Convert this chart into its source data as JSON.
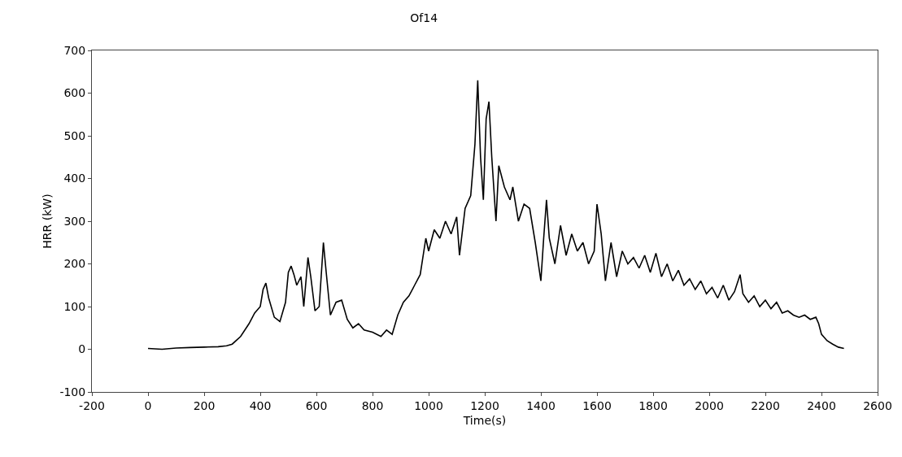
{
  "chart_data": {
    "type": "line",
    "title": "Of14",
    "xlabel": "Time(s)",
    "ylabel": "HRR (kW)",
    "xlim": [
      -200,
      2600
    ],
    "xticks": [
      -200,
      0,
      200,
      400,
      600,
      800,
      1000,
      1200,
      1400,
      1600,
      1800,
      2000,
      2200,
      2400,
      2600
    ],
    "ylim": [
      -100,
      700
    ],
    "yticks": [
      -100,
      0,
      100,
      200,
      300,
      400,
      500,
      600,
      700
    ],
    "marker": "none",
    "line_style": "solid",
    "series": [
      {
        "color": "#000000",
        "x": [
          0,
          50,
          100,
          150,
          200,
          250,
          280,
          300,
          330,
          360,
          380,
          400,
          410,
          420,
          430,
          450,
          470,
          490,
          500,
          510,
          520,
          530,
          545,
          555,
          570,
          580,
          595,
          610,
          625,
          635,
          650,
          670,
          690,
          710,
          730,
          750,
          770,
          800,
          830,
          850,
          870,
          890,
          910,
          930,
          950,
          970,
          990,
          1000,
          1020,
          1040,
          1060,
          1080,
          1100,
          1110,
          1130,
          1150,
          1165,
          1175,
          1185,
          1195,
          1205,
          1215,
          1225,
          1240,
          1250,
          1270,
          1290,
          1300,
          1320,
          1340,
          1360,
          1380,
          1400,
          1410,
          1420,
          1430,
          1450,
          1470,
          1490,
          1510,
          1530,
          1550,
          1570,
          1590,
          1600,
          1615,
          1630,
          1650,
          1670,
          1690,
          1710,
          1730,
          1750,
          1770,
          1790,
          1810,
          1830,
          1850,
          1870,
          1890,
          1910,
          1930,
          1950,
          1970,
          1990,
          2010,
          2030,
          2050,
          2070,
          2090,
          2110,
          2120,
          2140,
          2160,
          2180,
          2200,
          2220,
          2240,
          2260,
          2280,
          2300,
          2320,
          2340,
          2360,
          2380,
          2390,
          2400,
          2420,
          2440,
          2460,
          2480
        ],
        "values": [
          2,
          0,
          3,
          4,
          5,
          6,
          8,
          12,
          30,
          60,
          85,
          100,
          140,
          155,
          120,
          75,
          65,
          110,
          180,
          195,
          175,
          150,
          170,
          100,
          215,
          170,
          90,
          100,
          250,
          180,
          80,
          110,
          115,
          70,
          50,
          60,
          45,
          40,
          30,
          45,
          35,
          80,
          110,
          125,
          150,
          175,
          260,
          230,
          280,
          260,
          300,
          270,
          310,
          220,
          330,
          360,
          480,
          630,
          450,
          350,
          540,
          580,
          450,
          300,
          430,
          380,
          350,
          380,
          300,
          340,
          330,
          250,
          160,
          260,
          350,
          260,
          200,
          290,
          220,
          270,
          230,
          250,
          200,
          230,
          340,
          270,
          160,
          250,
          170,
          230,
          200,
          215,
          190,
          220,
          180,
          225,
          170,
          200,
          160,
          185,
          150,
          165,
          140,
          160,
          130,
          145,
          120,
          150,
          115,
          135,
          175,
          130,
          110,
          125,
          100,
          115,
          95,
          110,
          85,
          90,
          80,
          75,
          80,
          70,
          75,
          60,
          35,
          20,
          12,
          5,
          2
        ]
      }
    ]
  }
}
